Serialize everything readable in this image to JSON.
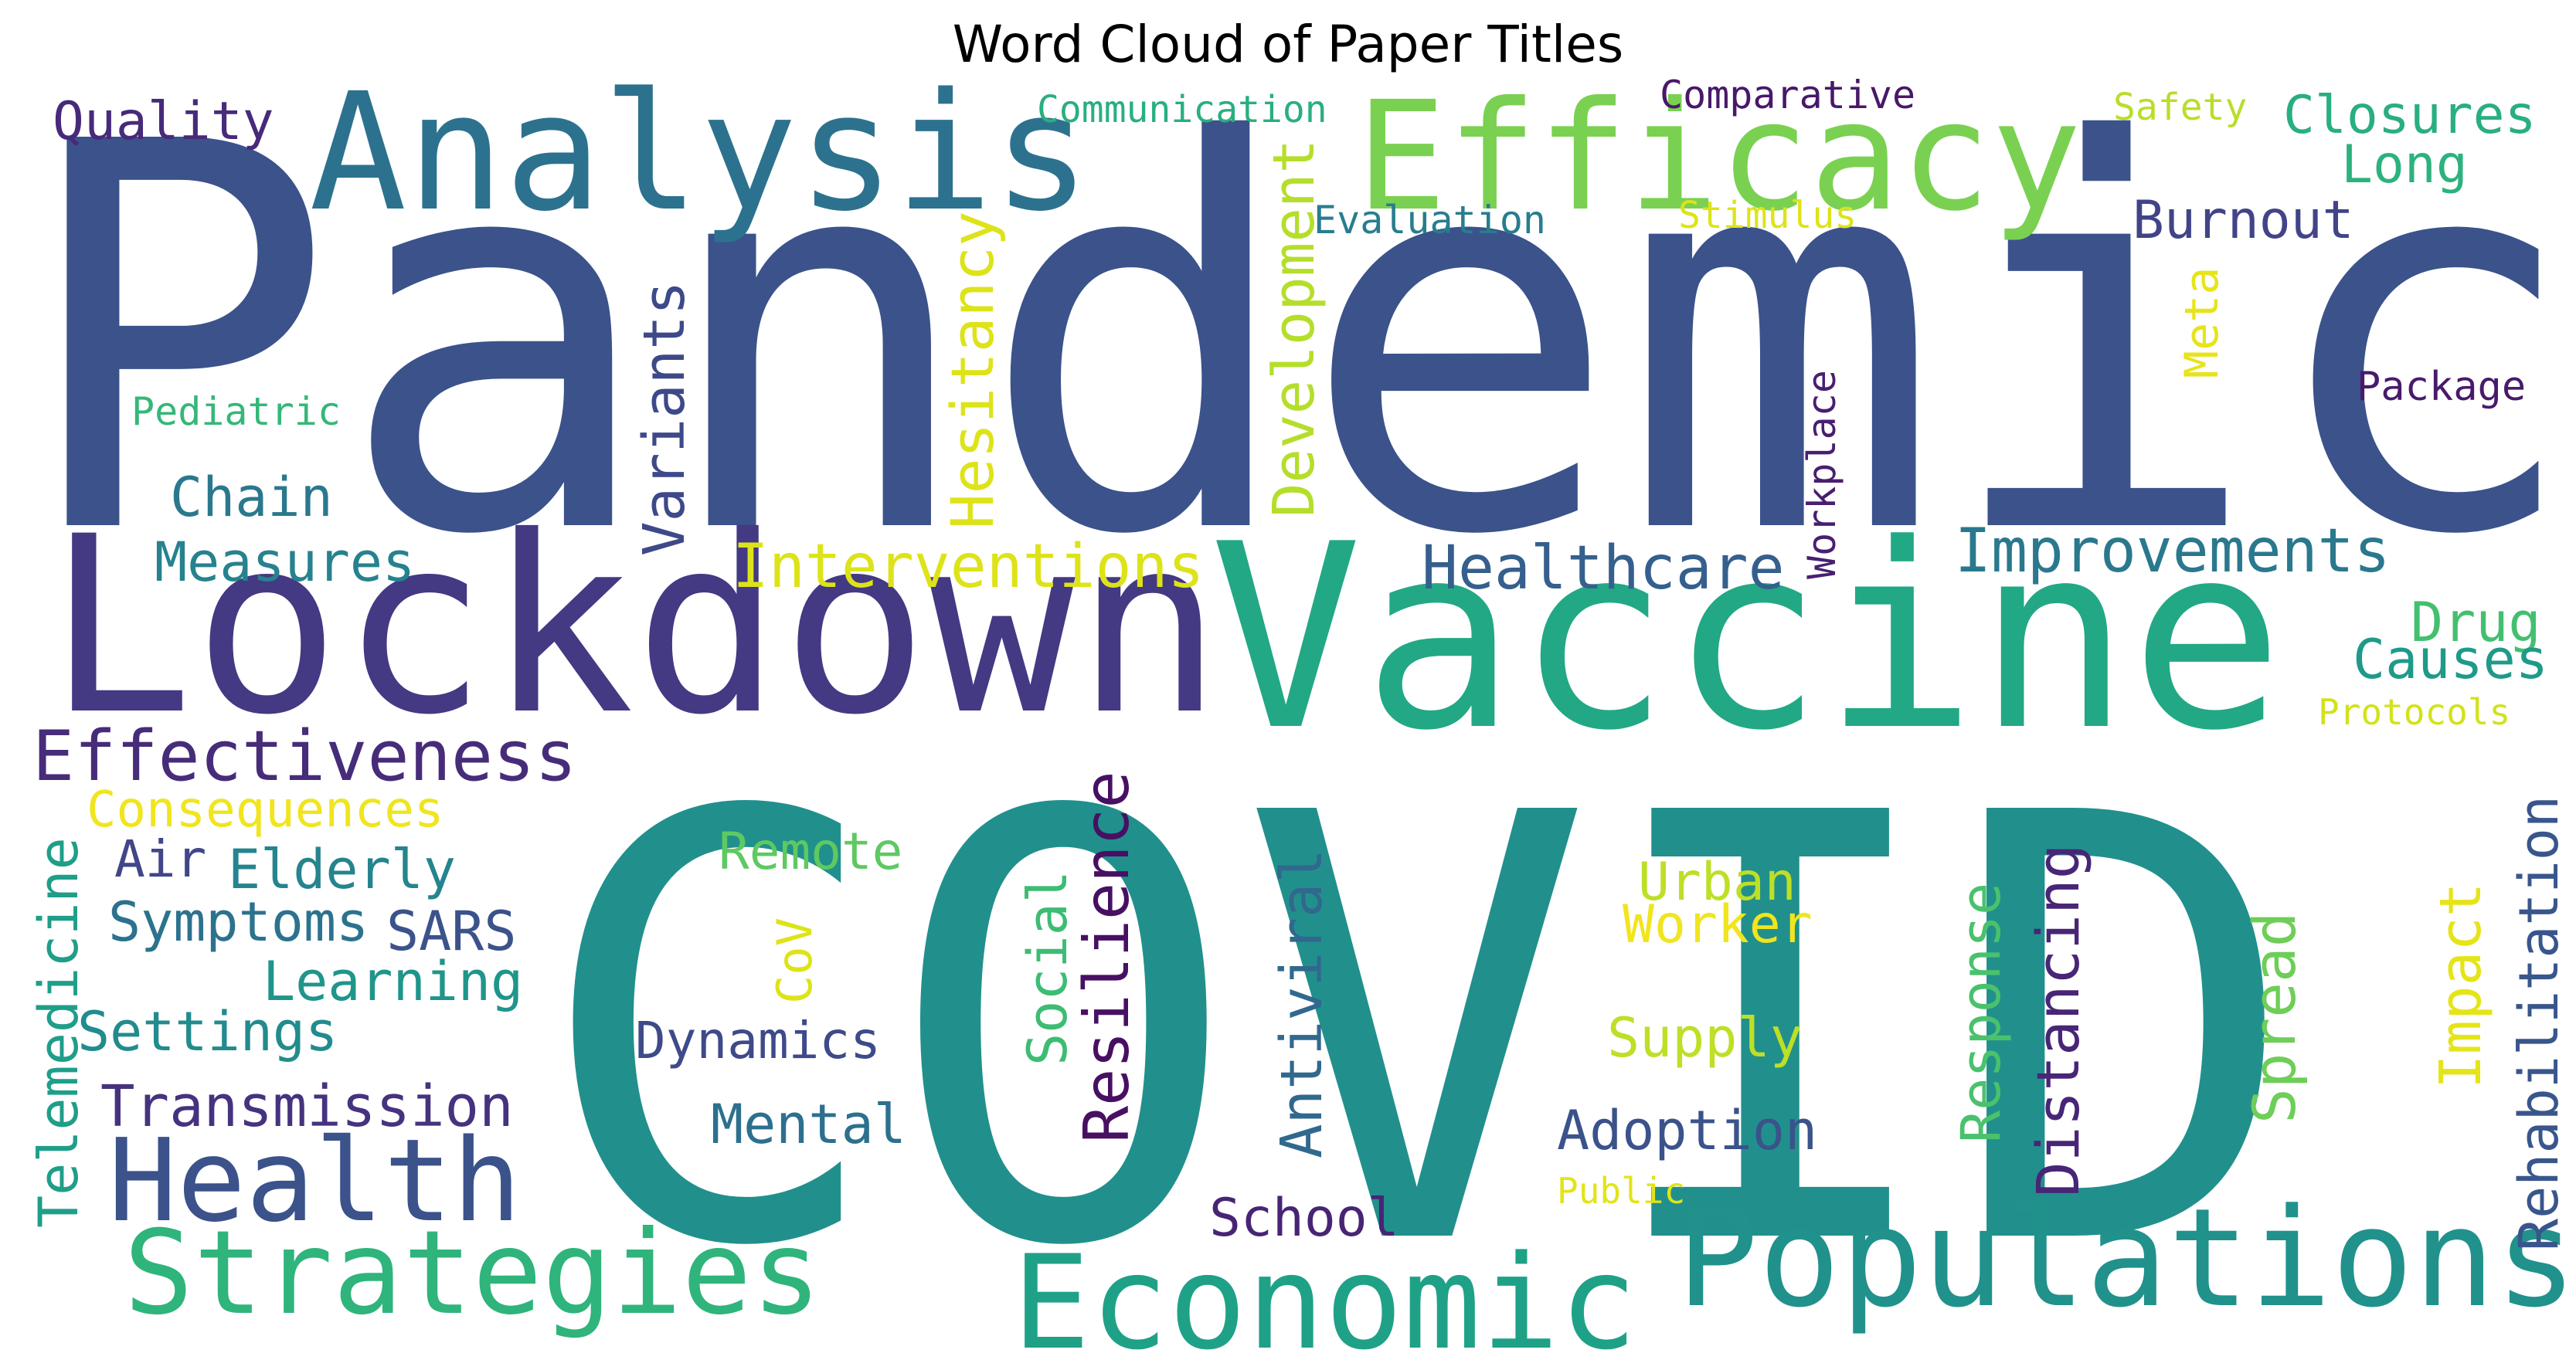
{
  "chart_data": {
    "type": "wordcloud",
    "title": "Word Cloud of Paper Titles",
    "colormap": "viridis",
    "words": [
      {
        "text": "Pandemic",
        "color": "#3b528b"
      },
      {
        "text": "COVID",
        "color": "#21908c"
      },
      {
        "text": "Vaccine",
        "color": "#22a884"
      },
      {
        "text": "Lockdown",
        "color": "#443983"
      },
      {
        "text": "Analysis",
        "color": "#2c728e"
      },
      {
        "text": "Efficacy",
        "color": "#7ad151"
      },
      {
        "text": "Populations",
        "color": "#21918c"
      },
      {
        "text": "Economic",
        "color": "#1fa187"
      },
      {
        "text": "Strategies",
        "color": "#2fb47c"
      },
      {
        "text": "Health",
        "color": "#3b528b"
      },
      {
        "text": "Effectiveness",
        "color": "#472c7a"
      },
      {
        "text": "Interventions",
        "color": "#dde318"
      },
      {
        "text": "Healthcare",
        "color": "#355f8d"
      },
      {
        "text": "Improvements",
        "color": "#2a788e"
      },
      {
        "text": "Rehabilitation",
        "color": "#39568c"
      },
      {
        "text": "Transmission",
        "color": "#46327e"
      },
      {
        "text": "Telemedicine",
        "color": "#1f9e89"
      },
      {
        "text": "Development",
        "color": "#b5de2b"
      },
      {
        "text": "Hesitancy",
        "color": "#dde318"
      },
      {
        "text": "Variants",
        "color": "#3e4989"
      },
      {
        "text": "Resilience",
        "color": "#471063"
      },
      {
        "text": "Antiviral",
        "color": "#31688e"
      },
      {
        "text": "Distancing",
        "color": "#482576"
      },
      {
        "text": "Response",
        "color": "#4ac16d"
      },
      {
        "text": "Spread",
        "color": "#6ece58"
      },
      {
        "text": "Impact",
        "color": "#e5e419"
      },
      {
        "text": "Social",
        "color": "#3dbc74"
      },
      {
        "text": "Consequences",
        "color": "#f0e51e"
      },
      {
        "text": "Quality",
        "color": "#472a7a"
      },
      {
        "text": "Closures",
        "color": "#29af7f"
      },
      {
        "text": "Burnout",
        "color": "#414487"
      },
      {
        "text": "Long",
        "color": "#2db27d"
      },
      {
        "text": "Measures",
        "color": "#26828e"
      },
      {
        "text": "Chain",
        "color": "#2a788e"
      },
      {
        "text": "Drug",
        "color": "#44bf70"
      },
      {
        "text": "Causes",
        "color": "#1f9a8a"
      },
      {
        "text": "Elderly",
        "color": "#25848e"
      },
      {
        "text": "Symptoms",
        "color": "#2c728e"
      },
      {
        "text": "SARS",
        "color": "#3b528b"
      },
      {
        "text": "Air",
        "color": "#404688"
      },
      {
        "text": "Learning",
        "color": "#1f958b"
      },
      {
        "text": "Settings",
        "color": "#228b8d"
      },
      {
        "text": "Dynamics",
        "color": "#3e4a89"
      },
      {
        "text": "Mental",
        "color": "#2d708e"
      },
      {
        "text": "Remote",
        "color": "#5ec962"
      },
      {
        "text": "CoV",
        "color": "#dde318"
      },
      {
        "text": "Urban",
        "color": "#bddf26"
      },
      {
        "text": "Worker",
        "color": "#f0e51e"
      },
      {
        "text": "Supply",
        "color": "#bddf26"
      },
      {
        "text": "Adoption",
        "color": "#3b528b"
      },
      {
        "text": "School",
        "color": "#482475"
      },
      {
        "text": "Public",
        "color": "#e2e418"
      },
      {
        "text": "Protocols",
        "color": "#d2e21b"
      },
      {
        "text": "Meta",
        "color": "#e7e419"
      },
      {
        "text": "Package",
        "color": "#481a6c"
      },
      {
        "text": "Workplace",
        "color": "#481f70"
      },
      {
        "text": "Pediatric",
        "color": "#35b779"
      },
      {
        "text": "Communication",
        "color": "#29af7f"
      },
      {
        "text": "Comparative",
        "color": "#48186a"
      },
      {
        "text": "Safety",
        "color": "#b8de29"
      },
      {
        "text": "Stimulus",
        "color": "#dde318"
      },
      {
        "text": "Evaluation",
        "color": "#287d8e"
      }
    ]
  }
}
